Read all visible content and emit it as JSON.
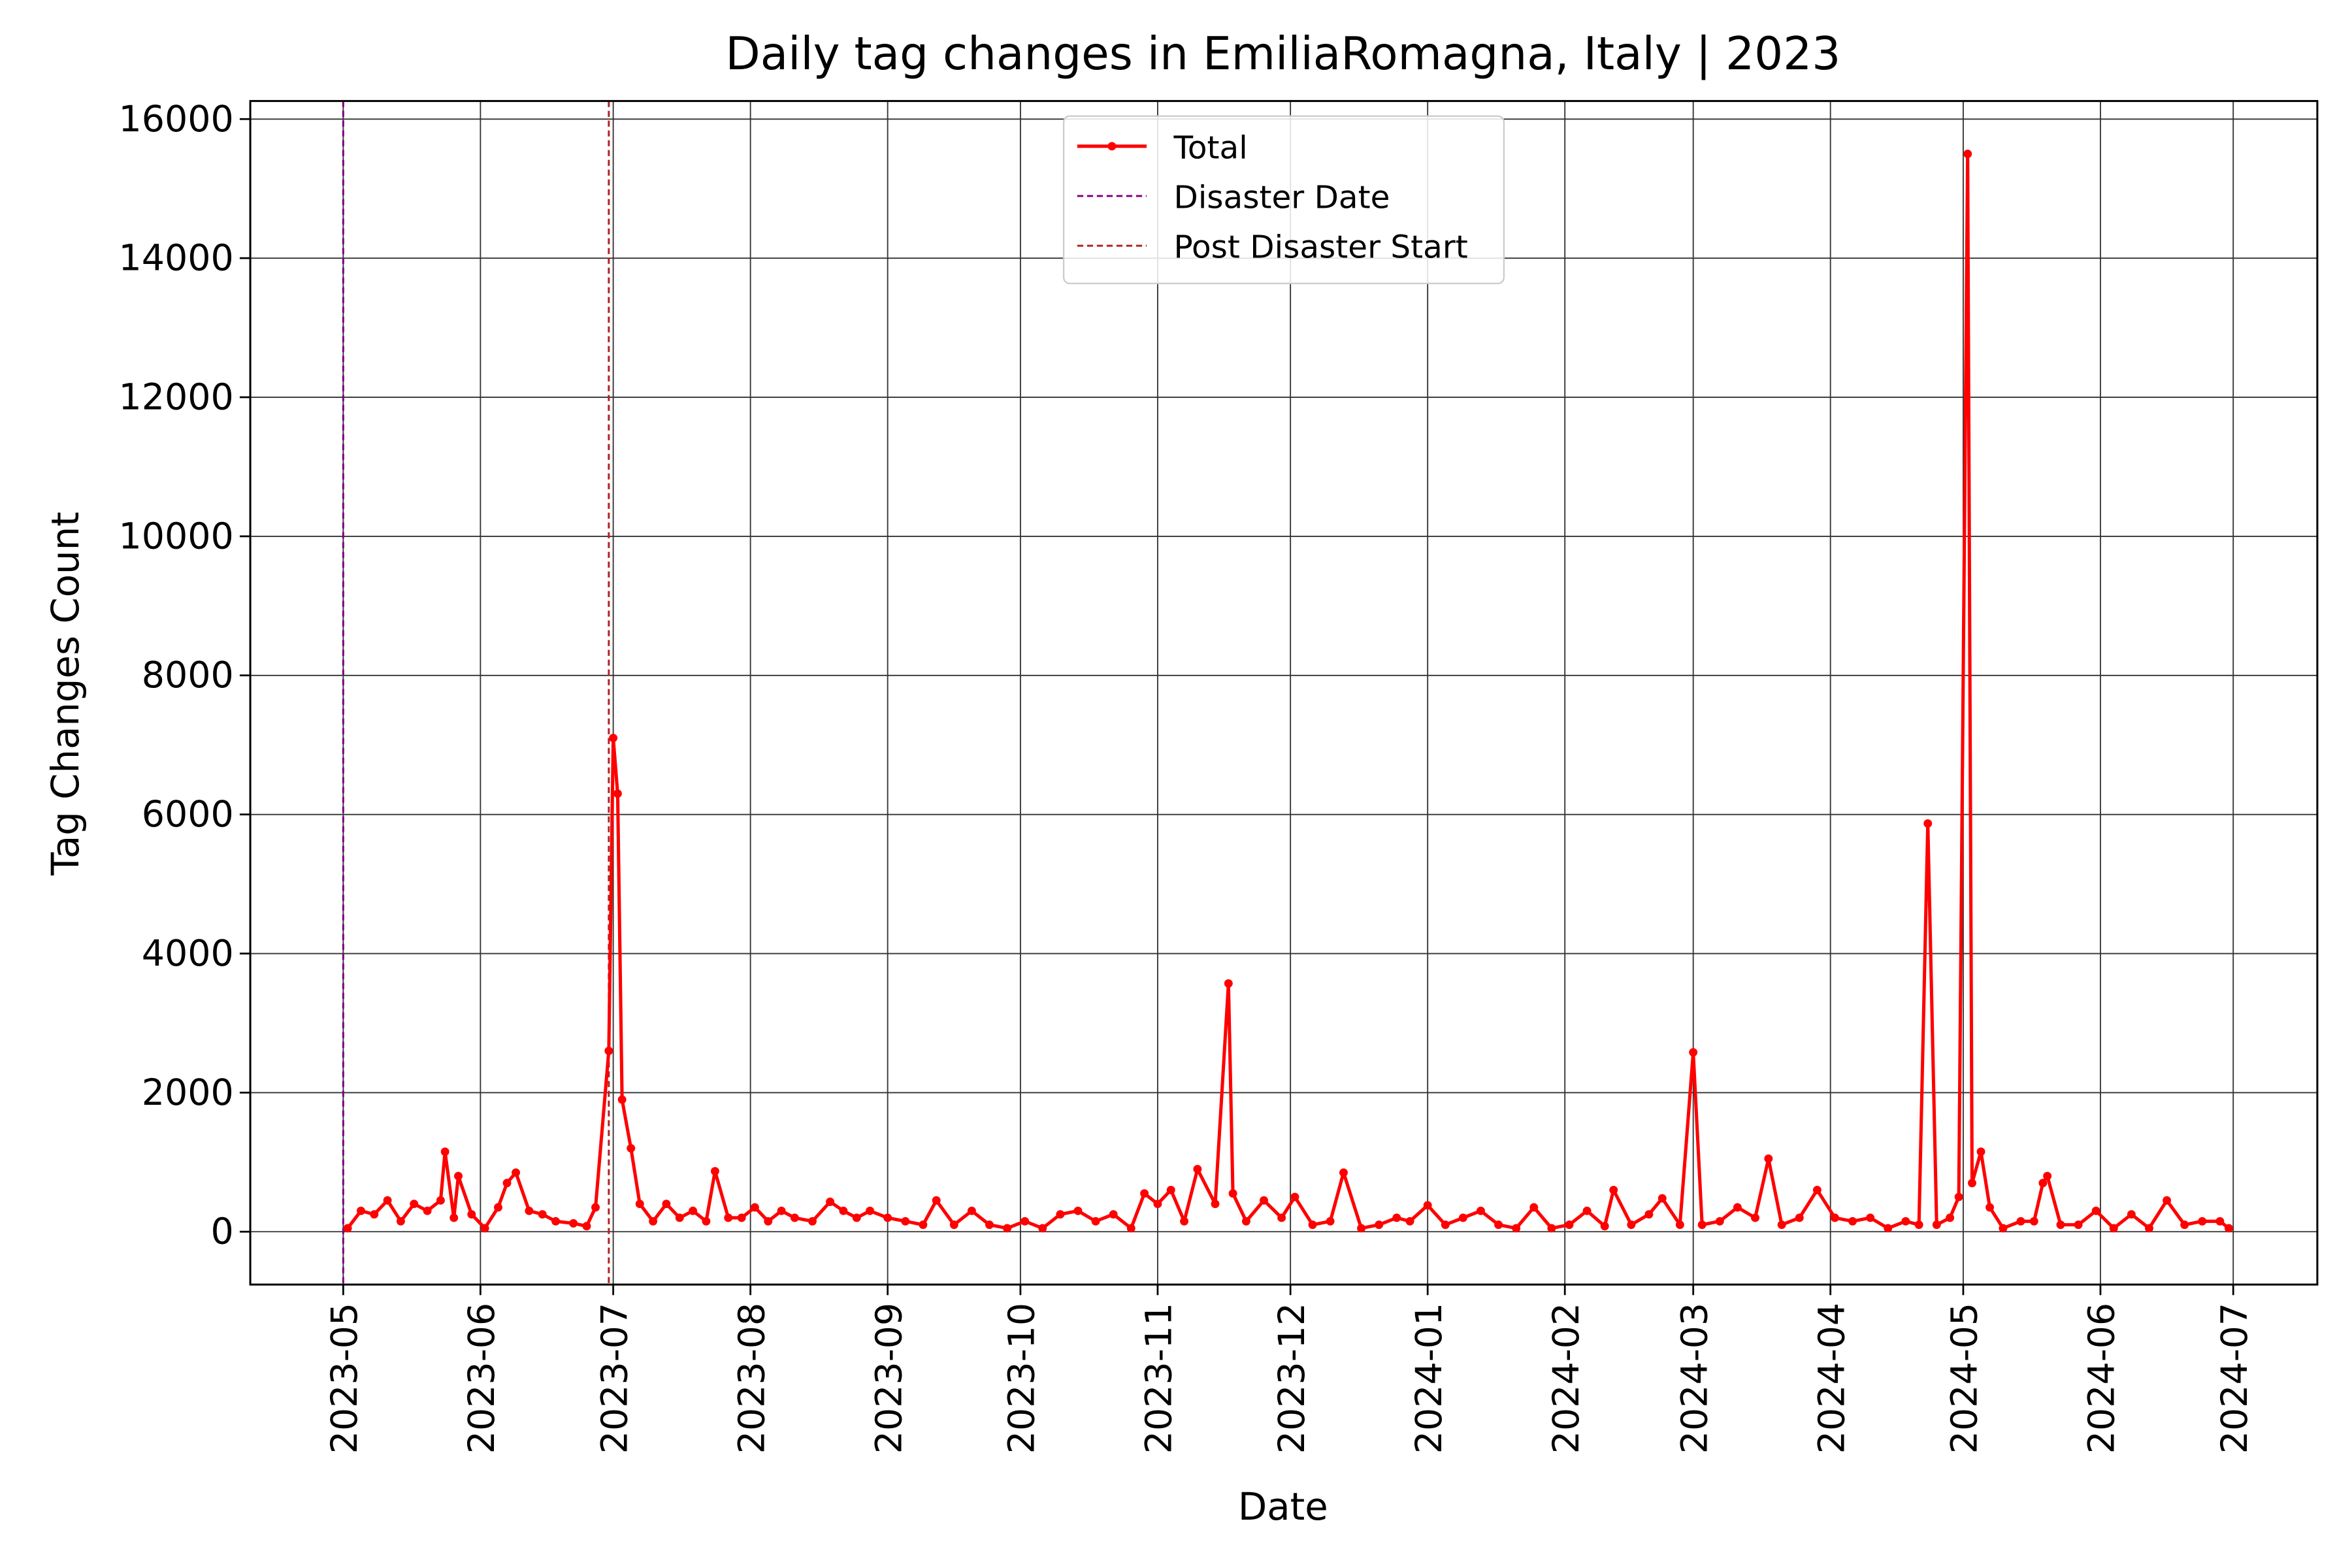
{
  "chart_data": {
    "type": "line",
    "title": "Daily tag changes in EmiliaRomagna, Italy | 2023",
    "xlabel": "Date",
    "ylabel": "Tag Changes Count",
    "x": [
      "2023-05-02",
      "2023-05-05",
      "2023-05-08",
      "2023-05-11",
      "2023-05-14",
      "2023-05-17",
      "2023-05-20",
      "2023-05-23",
      "2023-05-24",
      "2023-05-26",
      "2023-05-27",
      "2023-05-30",
      "2023-06-02",
      "2023-06-05",
      "2023-06-07",
      "2023-06-09",
      "2023-06-12",
      "2023-06-15",
      "2023-06-18",
      "2023-06-22",
      "2023-06-25",
      "2023-06-27",
      "2023-06-30",
      "2023-07-01",
      "2023-07-02",
      "2023-07-03",
      "2023-07-05",
      "2023-07-07",
      "2023-07-10",
      "2023-07-13",
      "2023-07-16",
      "2023-07-19",
      "2023-07-22",
      "2023-07-24",
      "2023-07-27",
      "2023-07-30",
      "2023-08-02",
      "2023-08-05",
      "2023-08-08",
      "2023-08-11",
      "2023-08-15",
      "2023-08-19",
      "2023-08-22",
      "2023-08-25",
      "2023-08-28",
      "2023-09-01",
      "2023-09-05",
      "2023-09-09",
      "2023-09-12",
      "2023-09-16",
      "2023-09-20",
      "2023-09-24",
      "2023-09-28",
      "2023-10-02",
      "2023-10-06",
      "2023-10-10",
      "2023-10-14",
      "2023-10-18",
      "2023-10-22",
      "2023-10-26",
      "2023-10-29",
      "2023-11-01",
      "2023-11-04",
      "2023-11-07",
      "2023-11-10",
      "2023-11-14",
      "2023-11-17",
      "2023-11-18",
      "2023-11-21",
      "2023-11-25",
      "2023-11-29",
      "2023-12-02",
      "2023-12-06",
      "2023-12-10",
      "2023-12-13",
      "2023-12-17",
      "2023-12-21",
      "2023-12-25",
      "2023-12-28",
      "2024-01-01",
      "2024-01-05",
      "2024-01-09",
      "2024-01-13",
      "2024-01-17",
      "2024-01-21",
      "2024-01-25",
      "2024-01-29",
      "2024-02-02",
      "2024-02-06",
      "2024-02-10",
      "2024-02-12",
      "2024-02-16",
      "2024-02-20",
      "2024-02-23",
      "2024-02-27",
      "2024-03-01",
      "2024-03-03",
      "2024-03-07",
      "2024-03-11",
      "2024-03-15",
      "2024-03-18",
      "2024-03-21",
      "2024-03-25",
      "2024-03-29",
      "2024-04-02",
      "2024-04-06",
      "2024-04-10",
      "2024-04-14",
      "2024-04-18",
      "2024-04-21",
      "2024-04-23",
      "2024-04-25",
      "2024-04-28",
      "2024-04-30",
      "2024-05-02",
      "2024-05-03",
      "2024-05-05",
      "2024-05-07",
      "2024-05-10",
      "2024-05-14",
      "2024-05-17",
      "2024-05-19",
      "2024-05-20",
      "2024-05-23",
      "2024-05-27",
      "2024-05-31",
      "2024-06-04",
      "2024-06-08",
      "2024-06-12",
      "2024-06-16",
      "2024-06-20",
      "2024-06-24",
      "2024-06-28",
      "2024-06-30"
    ],
    "series": [
      {
        "name": "Total",
        "color": "#ff0000",
        "values": [
          50,
          300,
          250,
          450,
          150,
          400,
          300,
          450,
          1150,
          200,
          800,
          250,
          50,
          350,
          700,
          850,
          300,
          250,
          150,
          120,
          80,
          350,
          2600,
          7100,
          6300,
          1900,
          1200,
          400,
          150,
          400,
          200,
          300,
          150,
          870,
          200,
          200,
          350,
          150,
          300,
          200,
          150,
          430,
          300,
          200,
          300,
          200,
          150,
          100,
          450,
          100,
          300,
          100,
          50,
          150,
          50,
          250,
          300,
          150,
          250,
          50,
          550,
          400,
          600,
          150,
          900,
          400,
          3570,
          550,
          150,
          450,
          200,
          500,
          100,
          150,
          850,
          50,
          100,
          200,
          150,
          380,
          100,
          200,
          300,
          100,
          50,
          350,
          50,
          100,
          300,
          80,
          600,
          100,
          250,
          480,
          100,
          2580,
          100,
          150,
          350,
          200,
          1050,
          100,
          200,
          600,
          200,
          150,
          200,
          50,
          150,
          100,
          5870,
          100,
          200,
          500,
          15500,
          700,
          1150,
          350,
          50,
          150,
          150,
          700,
          800,
          100,
          100,
          300,
          50,
          250,
          50,
          450,
          100,
          150,
          150,
          50
        ]
      }
    ],
    "vlines": [
      {
        "name": "Disaster Date",
        "x": "2023-05-01",
        "color": "#800080"
      },
      {
        "name": "Post Disaster Start",
        "x": "2023-06-30",
        "color": "#b22222"
      }
    ],
    "xlim": [
      "2023-04-10",
      "2024-07-20"
    ],
    "xticks": [
      "2023-05",
      "2023-06",
      "2023-07",
      "2023-08",
      "2023-09",
      "2023-10",
      "2023-11",
      "2023-12",
      "2024-01",
      "2024-02",
      "2024-03",
      "2024-04",
      "2024-05",
      "2024-06",
      "2024-07"
    ],
    "ylim": [
      -760,
      16260
    ],
    "yticks": [
      0,
      2000,
      4000,
      6000,
      8000,
      10000,
      12000,
      14000,
      16000
    ],
    "grid": true,
    "legend": "upper center"
  }
}
